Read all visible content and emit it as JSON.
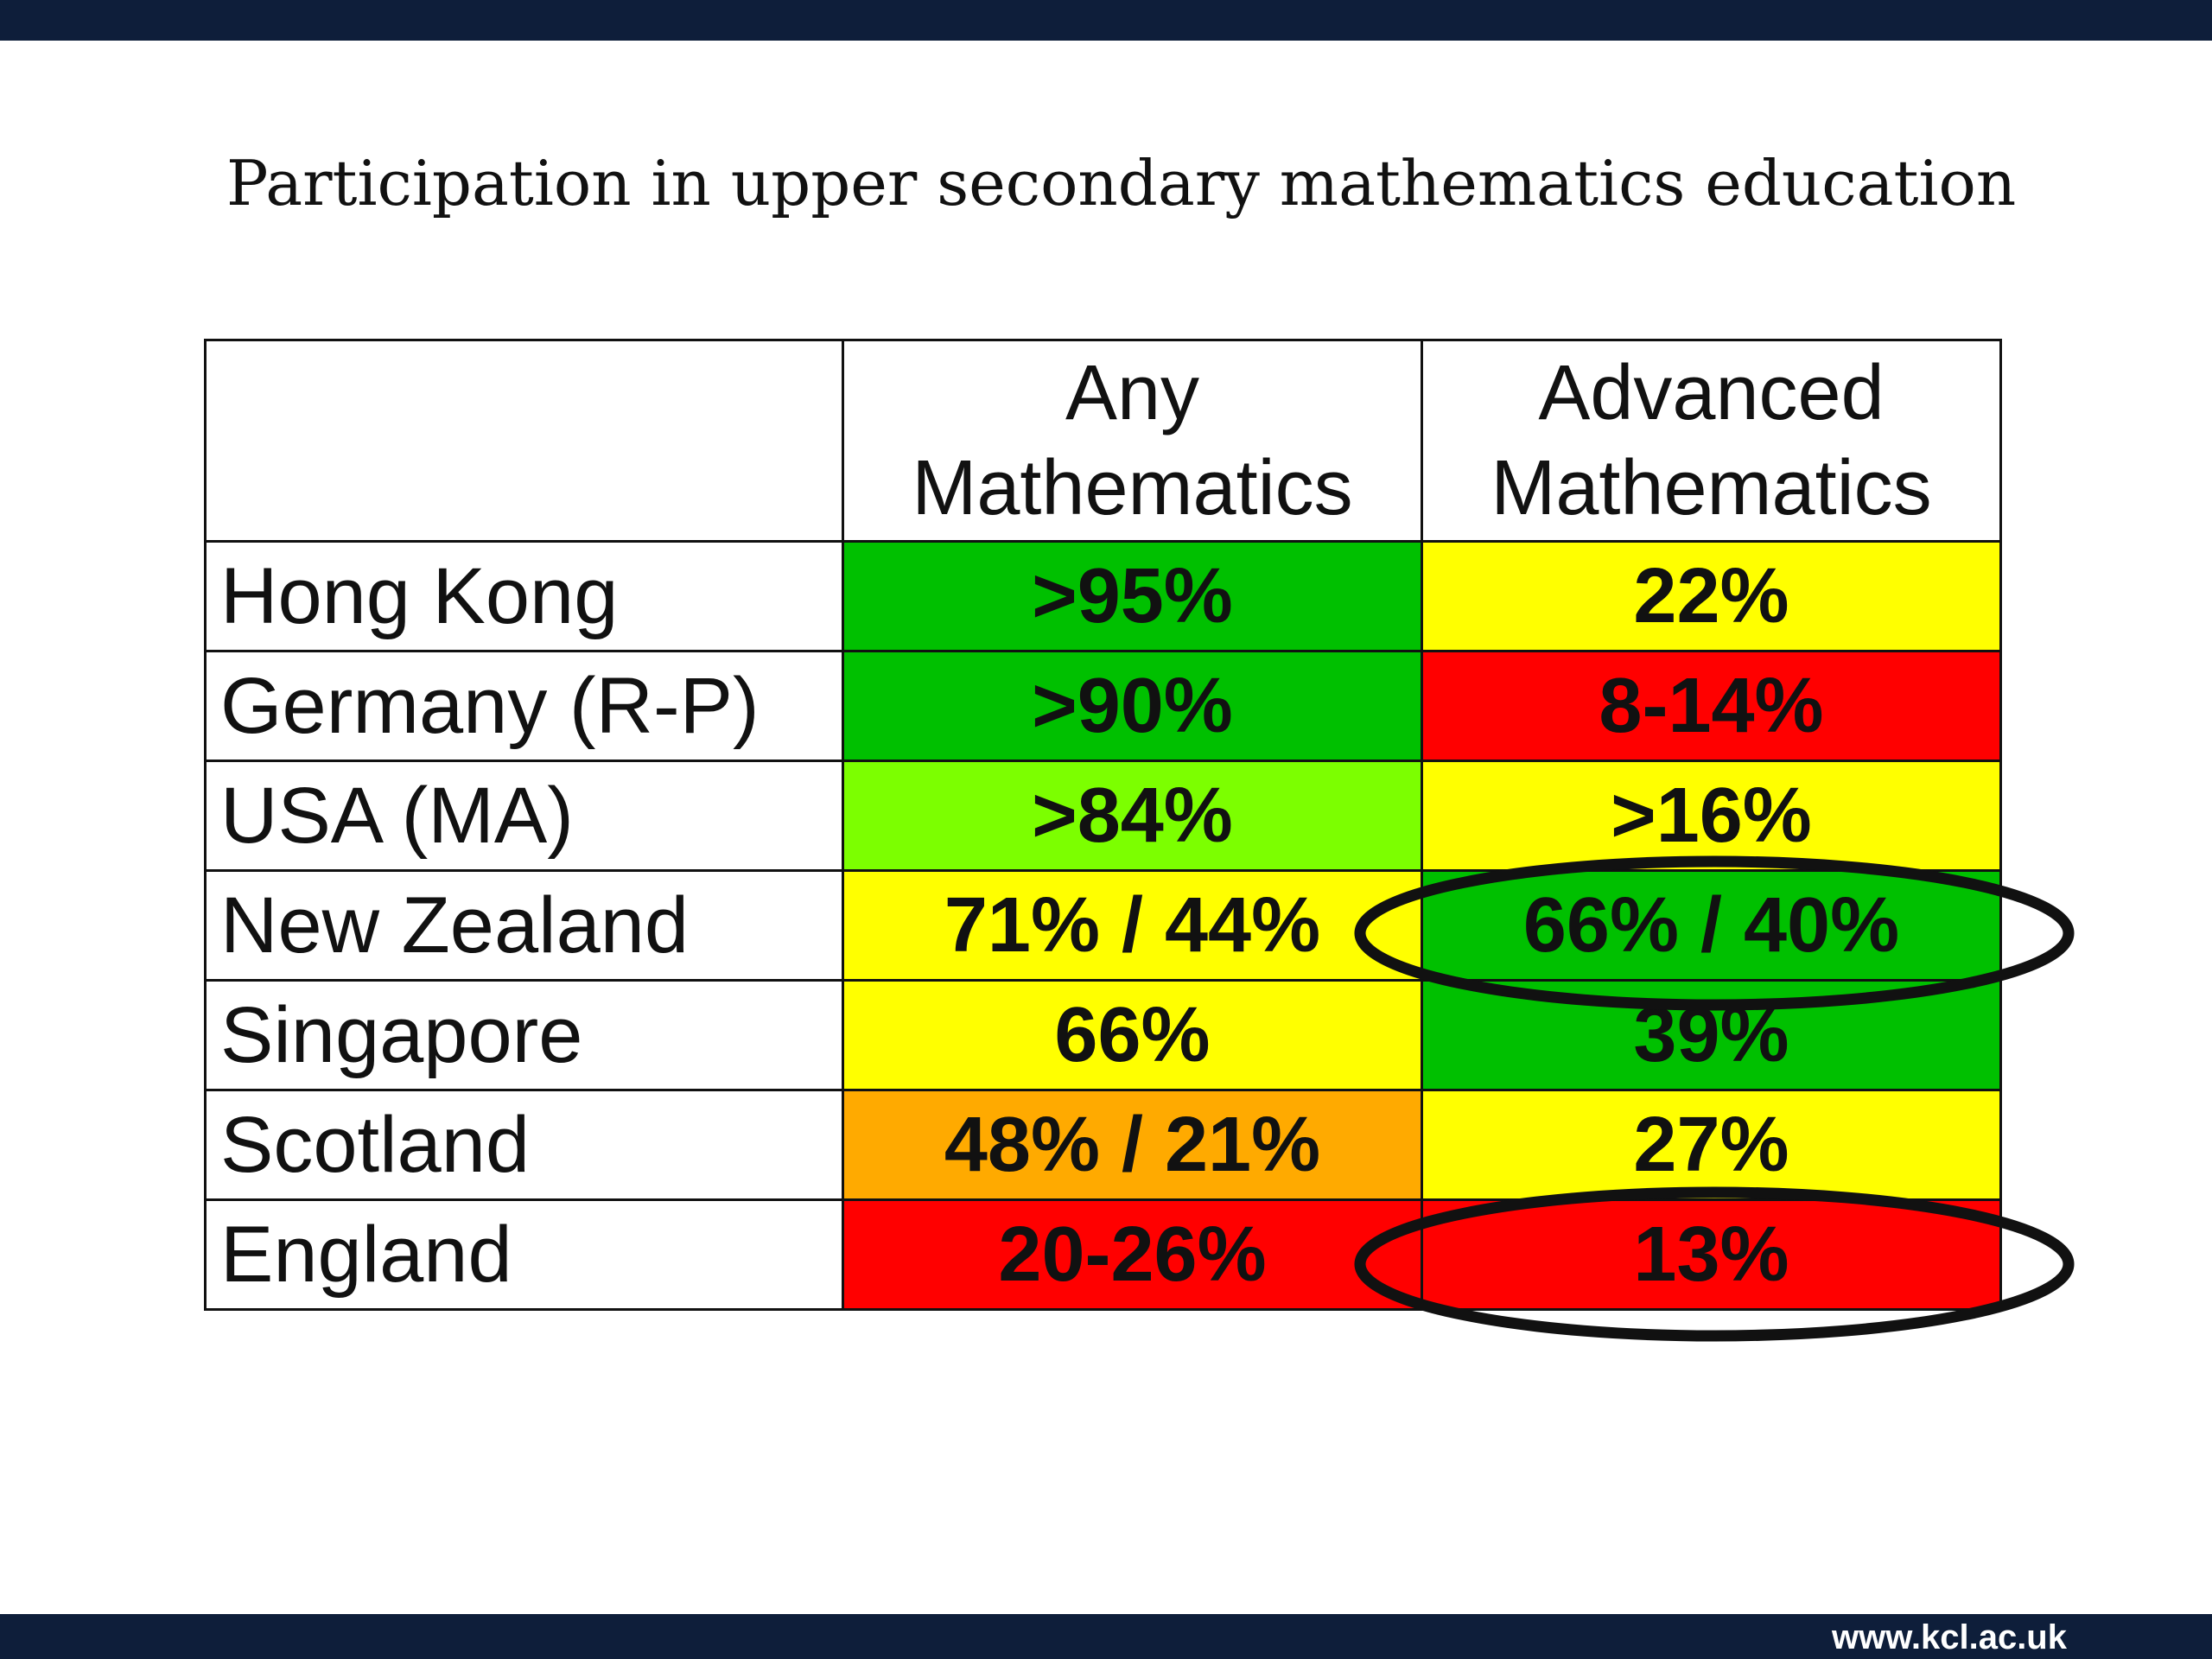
{
  "title": "Participation in upper secondary mathematics education",
  "table": {
    "headers": {
      "any_line1": "Any",
      "any_line2": "Mathematics",
      "advanced_line1": "Advanced",
      "advanced_line2": "Mathematics"
    },
    "rows": [
      {
        "country": "Hong Kong",
        "any": "&gt;95%",
        "advanced": "22%",
        "any_color": "#00c000",
        "advanced_color": "#ffff00"
      },
      {
        "country": "Germany (R-P)",
        "any": "&gt;90%",
        "advanced": "8-14%",
        "any_color": "#00c000",
        "advanced_color": "#ff0000"
      },
      {
        "country": "USA (MA)",
        "any": "&gt;84%",
        "advanced": "&gt;16%",
        "any_color": "#7cff00",
        "advanced_color": "#ffff00"
      },
      {
        "country": "New Zealand",
        "any": "71% / 44%",
        "advanced": "66% / 40%",
        "any_color": "#ffff00",
        "advanced_color": "#00c000"
      },
      {
        "country": "Singapore",
        "any": "66%",
        "advanced": "39%",
        "any_color": "#ffff00",
        "advanced_color": "#00c000"
      },
      {
        "country": "Scotland",
        "any": "48% / 21%",
        "advanced": "27%",
        "any_color": "#ffaa00",
        "advanced_color": "#ffff00"
      },
      {
        "country": "England",
        "any": "20-26%",
        "advanced": "13%",
        "any_color": "#ff0000",
        "advanced_color": "#ff0000"
      }
    ]
  },
  "highlight_circles": [
    "New Zealand",
    "England"
  ],
  "footer": {
    "url": "www.kcl.ac.uk"
  },
  "colors": {
    "bar": "#0e1e3a",
    "green": "#00c000",
    "light_green": "#7cff00",
    "yellow": "#ffff00",
    "orange": "#ffaa00",
    "red": "#ff0000"
  }
}
